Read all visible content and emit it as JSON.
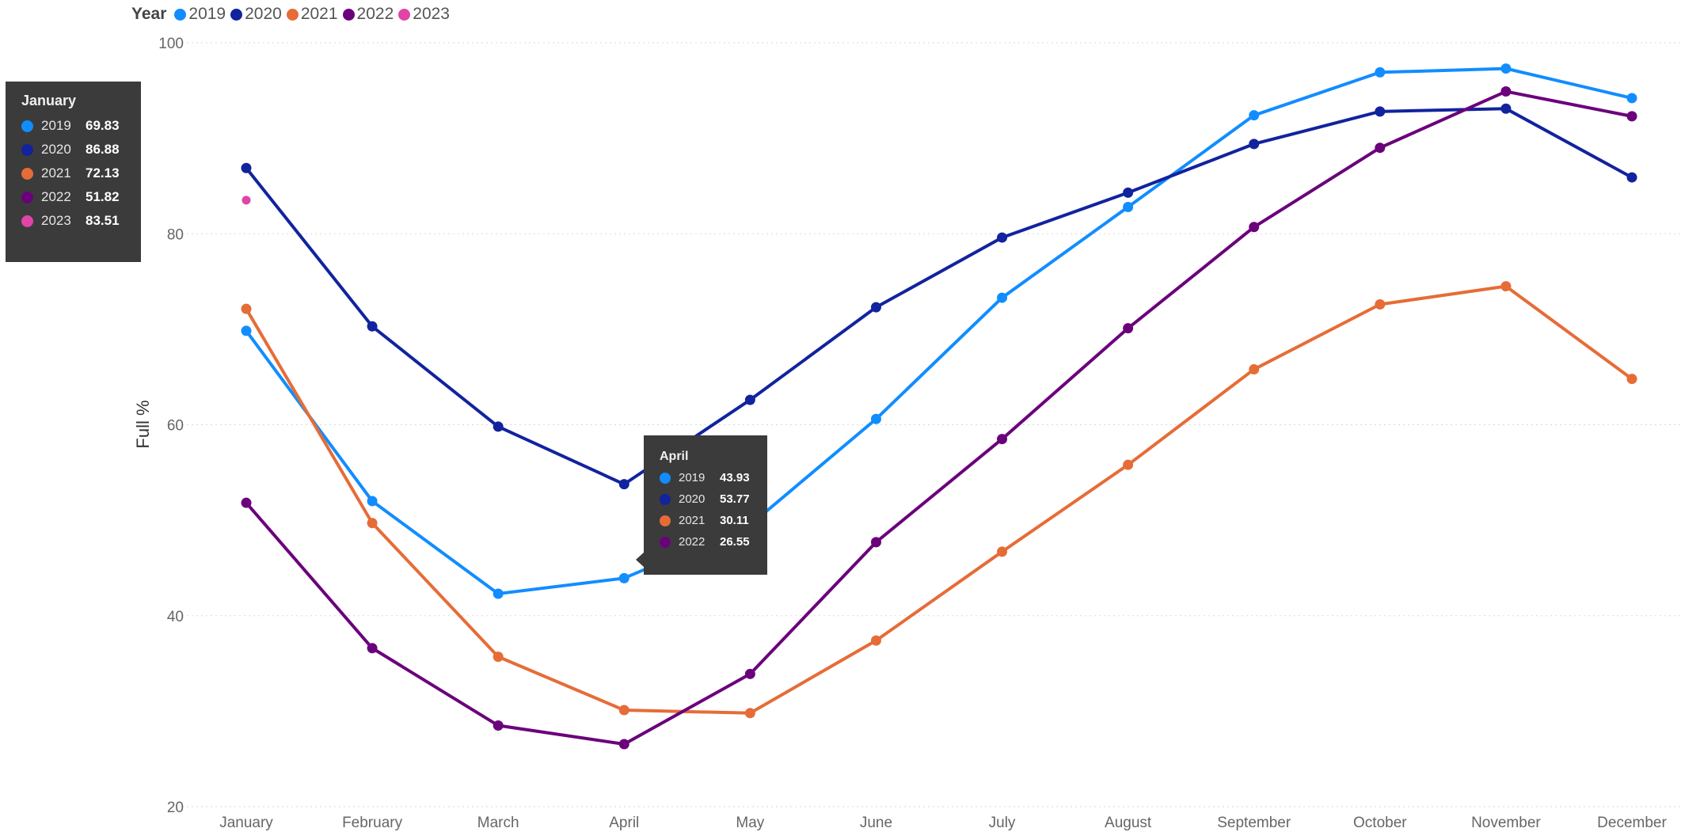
{
  "legend": {
    "title": "Year",
    "items": [
      {
        "label": "2019",
        "color": "#118DFF"
      },
      {
        "label": "2020",
        "color": "#12239E"
      },
      {
        "label": "2021",
        "color": "#E66C37"
      },
      {
        "label": "2022",
        "color": "#6B007B"
      },
      {
        "label": "2023",
        "color": "#E044A7"
      }
    ]
  },
  "tooltips": {
    "january": {
      "title": "January",
      "rows": [
        {
          "year": "2019",
          "value": "69.83",
          "color": "#118DFF"
        },
        {
          "year": "2020",
          "value": "86.88",
          "color": "#12239E"
        },
        {
          "year": "2021",
          "value": "72.13",
          "color": "#E66C37"
        },
        {
          "year": "2022",
          "value": "51.82",
          "color": "#6B007B"
        },
        {
          "year": "2023",
          "value": "83.51",
          "color": "#E044A7"
        }
      ]
    },
    "april": {
      "title": "April",
      "rows": [
        {
          "year": "2019",
          "value": "43.93",
          "color": "#118DFF"
        },
        {
          "year": "2020",
          "value": "53.77",
          "color": "#12239E"
        },
        {
          "year": "2021",
          "value": "30.11",
          "color": "#E66C37"
        },
        {
          "year": "2022",
          "value": "26.55",
          "color": "#6B007B"
        }
      ]
    }
  },
  "chart_data": {
    "type": "line",
    "ylabel": "Full %",
    "xlabel": "",
    "ylim": [
      20,
      100
    ],
    "yticks": [
      20,
      40,
      60,
      80,
      100
    ],
    "grid": true,
    "legend_position": "top-left",
    "categories": [
      "January",
      "February",
      "March",
      "April",
      "May",
      "June",
      "July",
      "August",
      "September",
      "October",
      "November",
      "December"
    ],
    "series": [
      {
        "name": "2019",
        "color": "#118DFF",
        "values": [
          69.83,
          52.0,
          42.3,
          43.93,
          49.5,
          60.6,
          73.3,
          82.8,
          92.4,
          96.9,
          97.3,
          94.2
        ]
      },
      {
        "name": "2020",
        "color": "#12239E",
        "values": [
          86.88,
          70.3,
          59.8,
          53.77,
          62.6,
          72.3,
          79.6,
          84.3,
          89.4,
          92.8,
          93.1,
          85.9
        ]
      },
      {
        "name": "2021",
        "color": "#E66C37",
        "values": [
          72.13,
          49.7,
          35.7,
          30.11,
          29.8,
          37.4,
          46.7,
          55.8,
          65.8,
          72.6,
          74.5,
          64.8
        ]
      },
      {
        "name": "2022",
        "color": "#6B007B",
        "values": [
          51.82,
          36.6,
          28.5,
          26.55,
          33.9,
          47.7,
          58.5,
          70.1,
          80.7,
          89.0,
          94.9,
          92.3
        ]
      },
      {
        "name": "2023",
        "color": "#E044A7",
        "values": [
          83.51,
          null,
          null,
          null,
          null,
          null,
          null,
          null,
          null,
          null,
          null,
          null
        ]
      }
    ]
  }
}
